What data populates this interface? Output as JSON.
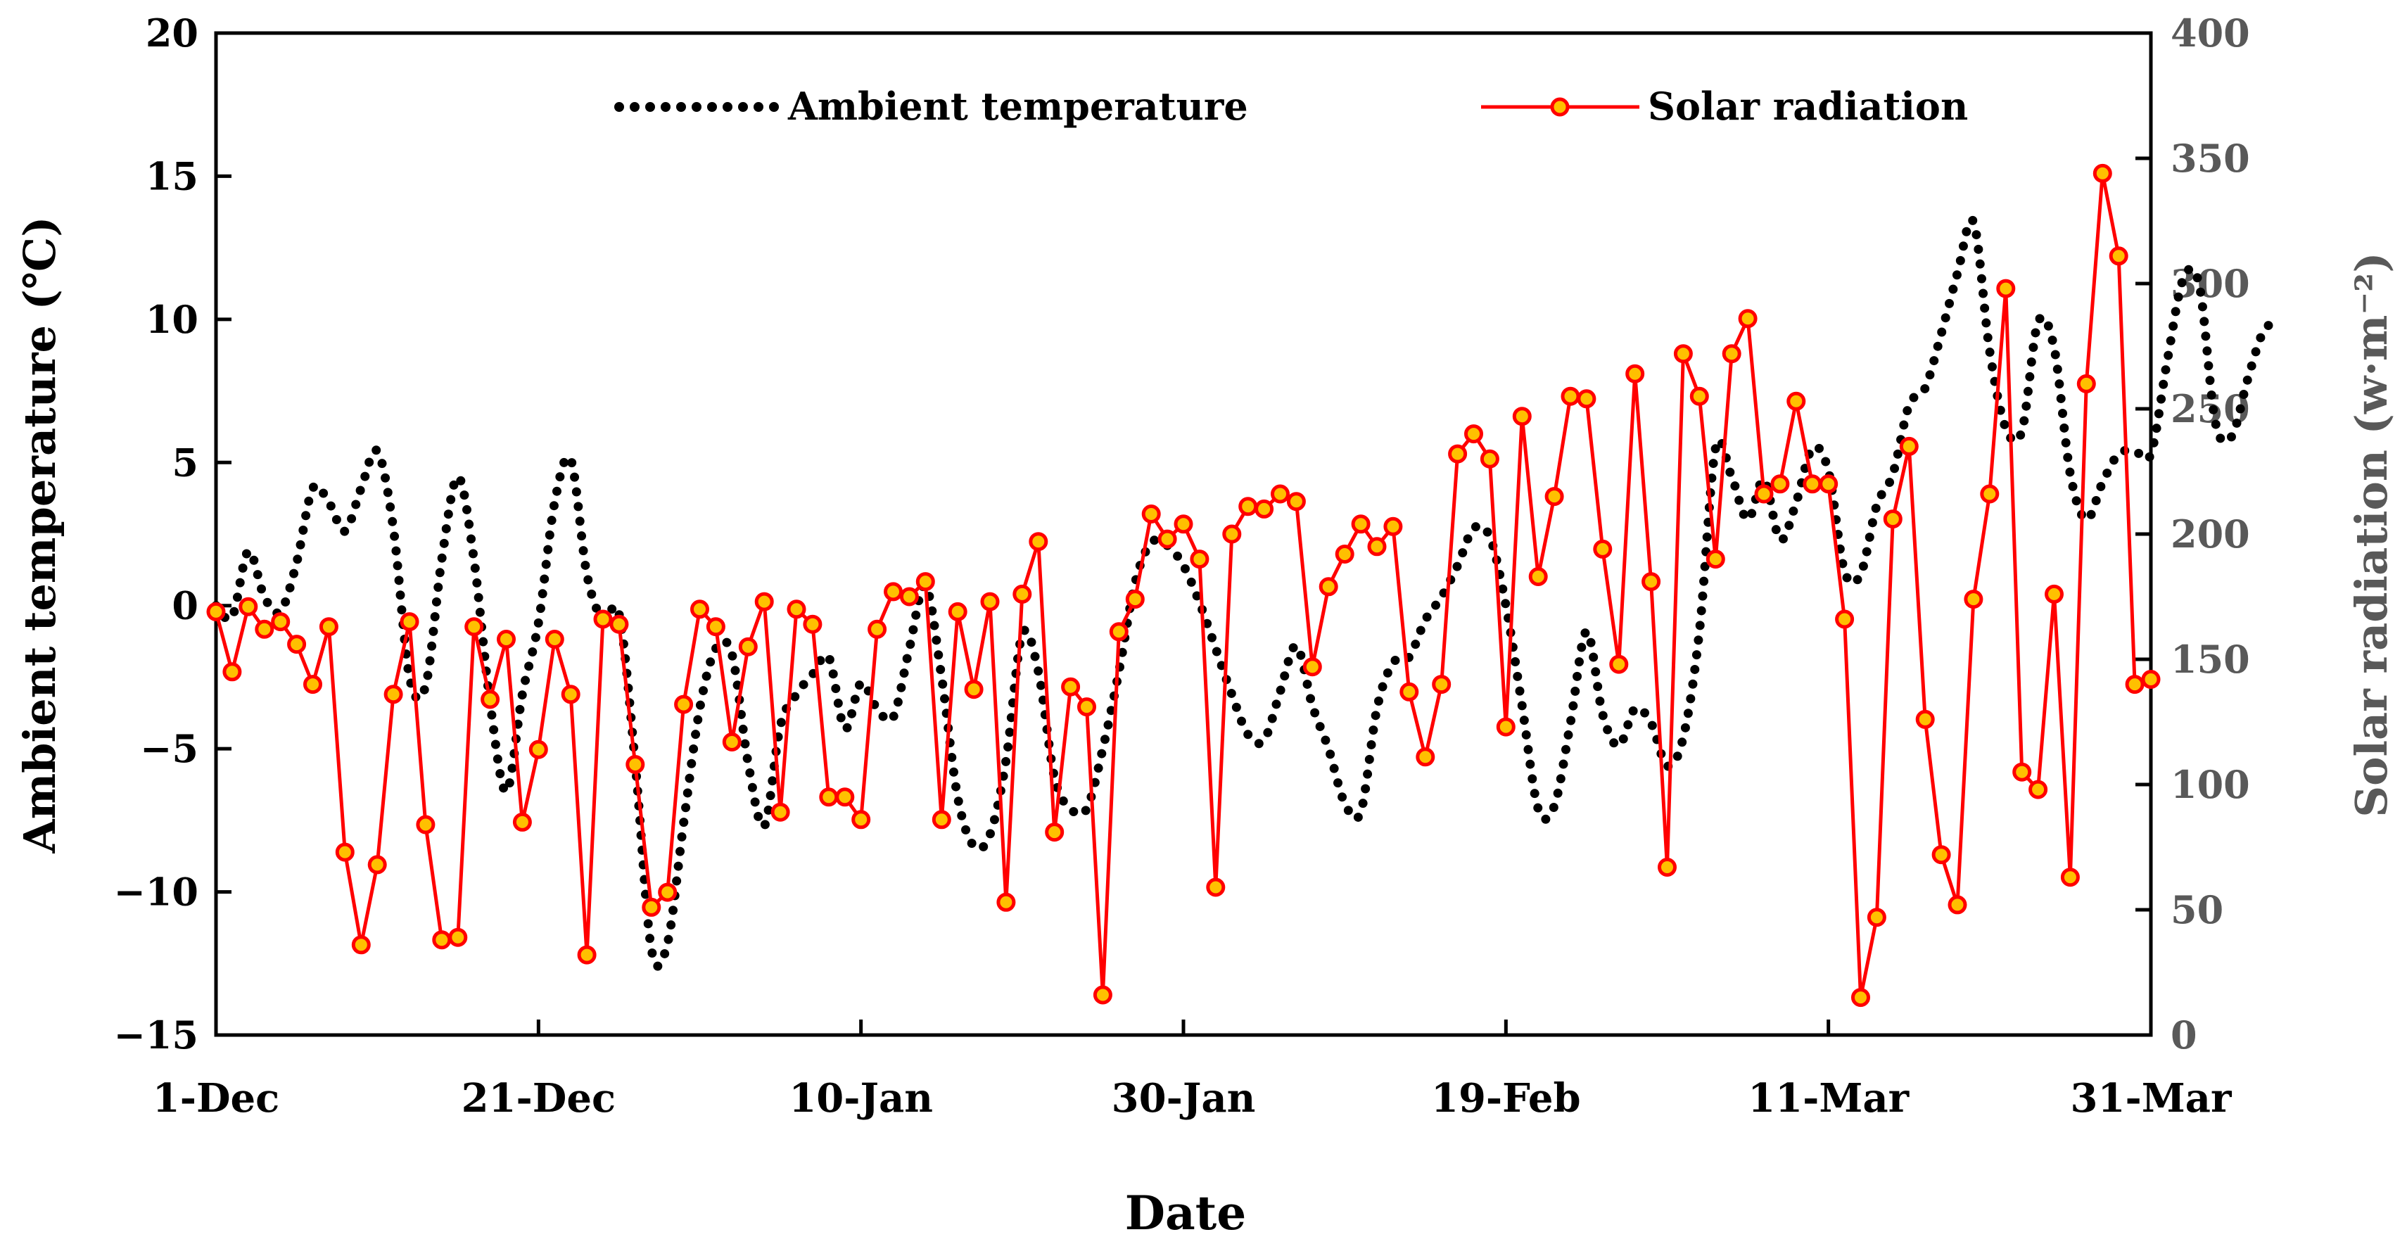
{
  "chart_data": {
    "type": "line",
    "title": "",
    "xlabel": "Date",
    "ylabel_left": "Ambient temperature (℃)",
    "ylabel_right": "Solar radiation (w·m⁻²)",
    "ylim_left": [
      -15,
      20
    ],
    "ylim_right": [
      0,
      400
    ],
    "yticks_left": [
      -15,
      -10,
      -5,
      0,
      5,
      10,
      15,
      20
    ],
    "yticks_left_labels": [
      "−15",
      "−10",
      "−5",
      "0",
      "5",
      "10",
      "15",
      "20"
    ],
    "yticks_right": [
      0,
      50,
      100,
      150,
      200,
      250,
      300,
      350,
      400
    ],
    "yticks_right_labels": [
      "0",
      "50",
      "100",
      "150",
      "200",
      "250",
      "300",
      "350",
      "400"
    ],
    "xlim": [
      0,
      120
    ],
    "xticks": [
      0,
      20,
      40,
      60,
      80,
      100,
      120
    ],
    "xtick_labels": [
      "1-Dec",
      "21-Dec",
      "10-Jan",
      "30-Jan",
      "19-Feb",
      "11-Mar",
      "31-Mar"
    ],
    "grid": false,
    "legend_position": "top",
    "series": [
      {
        "name": "Ambient temperature",
        "axis": "left",
        "style": "dotted",
        "color": "#000000",
        "points": [
          [
            0,
            0
          ],
          [
            1,
            -0.4
          ],
          [
            2,
            1.9
          ],
          [
            3,
            0.3
          ],
          [
            4,
            -0.2
          ],
          [
            5,
            1.5
          ],
          [
            6,
            4.1
          ],
          [
            7,
            3.6
          ],
          [
            8,
            2.6
          ],
          [
            9,
            4.1
          ],
          [
            10,
            5.4
          ],
          [
            11,
            2.7
          ],
          [
            12,
            -2.5
          ],
          [
            13,
            -2.8
          ],
          [
            14,
            1.6
          ],
          [
            15,
            4.5
          ],
          [
            16,
            1.6
          ],
          [
            17,
            -3.4
          ],
          [
            18,
            -6.5
          ],
          [
            19,
            -3.1
          ],
          [
            20,
            -0.6
          ],
          [
            21,
            3.6
          ],
          [
            22,
            5.1
          ],
          [
            23,
            1.1
          ],
          [
            24,
            -0.5
          ],
          [
            25,
            -0.3
          ],
          [
            26,
            -5.5
          ],
          [
            27,
            -12.0
          ],
          [
            28,
            -11.8
          ],
          [
            29,
            -7.6
          ],
          [
            30,
            -3.6
          ],
          [
            31,
            -1.5
          ],
          [
            32,
            -1.7
          ],
          [
            33,
            -5.5
          ],
          [
            34,
            -7.7
          ],
          [
            35,
            -4.2
          ],
          [
            36,
            -3.1
          ],
          [
            37,
            -2.4
          ],
          [
            38,
            -1.8
          ],
          [
            39,
            -4.3
          ],
          [
            40,
            -2.7
          ],
          [
            41,
            -3.6
          ],
          [
            42,
            -3.9
          ],
          [
            43,
            -1.5
          ],
          [
            44,
            0.7
          ],
          [
            45,
            -2.5
          ],
          [
            46,
            -6.7
          ],
          [
            47,
            -8.4
          ],
          [
            48,
            -8.0
          ],
          [
            49,
            -5.4
          ],
          [
            50,
            -1.0
          ],
          [
            51,
            -2.3
          ],
          [
            52,
            -6.0
          ],
          [
            53,
            -7.1
          ],
          [
            54,
            -7.1
          ],
          [
            55,
            -5.0
          ],
          [
            56,
            -2.3
          ],
          [
            57,
            0.8
          ],
          [
            58,
            2.2
          ],
          [
            59,
            2.1
          ],
          [
            60,
            1.4
          ],
          [
            61,
            0.1
          ],
          [
            62,
            -1.5
          ],
          [
            63,
            -3.1
          ],
          [
            64,
            -4.5
          ],
          [
            65,
            -4.7
          ],
          [
            66,
            -3.0
          ],
          [
            67,
            -1.4
          ],
          [
            68,
            -3.5
          ],
          [
            69,
            -5.0
          ],
          [
            70,
            -6.9
          ],
          [
            71,
            -7.2
          ],
          [
            72,
            -3.6
          ],
          [
            73,
            -2.0
          ],
          [
            74,
            -1.8
          ],
          [
            75,
            -0.5
          ],
          [
            76,
            0.3
          ],
          [
            77,
            1.4
          ],
          [
            78,
            2.7
          ],
          [
            79,
            2.4
          ],
          [
            80,
            0.0
          ],
          [
            81,
            -3.5
          ],
          [
            82,
            -7.1
          ],
          [
            83,
            -7.0
          ],
          [
            84,
            -4.1
          ],
          [
            85,
            -0.9
          ],
          [
            86,
            -3.8
          ],
          [
            87,
            -4.9
          ],
          [
            88,
            -3.6
          ],
          [
            89,
            -4.1
          ],
          [
            90,
            -5.6
          ],
          [
            91,
            -4.6
          ],
          [
            92,
            -0.9
          ],
          [
            93,
            5.5
          ],
          [
            94,
            4.5
          ],
          [
            95,
            3.0
          ],
          [
            96,
            4.4
          ],
          [
            97,
            2.3
          ],
          [
            98,
            3.6
          ],
          [
            99,
            5.5
          ],
          [
            100,
            4.7
          ],
          [
            101,
            1.2
          ],
          [
            102,
            1.1
          ],
          [
            103,
            3.5
          ],
          [
            104,
            4.6
          ],
          [
            105,
            7.0
          ],
          [
            106,
            7.6
          ],
          [
            107,
            9.5
          ],
          [
            108,
            11.6
          ],
          [
            109,
            13.4
          ],
          [
            110,
            8.9
          ],
          [
            111,
            6.2
          ],
          [
            112,
            6.1
          ],
          [
            113,
            9.9
          ],
          [
            114,
            9.0
          ],
          [
            115,
            4.6
          ],
          [
            116,
            3.0
          ],
          [
            117,
            4.3
          ],
          [
            118,
            5.3
          ],
          [
            119,
            5.4
          ],
          [
            120,
            5.3
          ],
          [
            121,
            8.5
          ],
          [
            122,
            11.4
          ],
          [
            123,
            11.2
          ],
          [
            124,
            6.4
          ],
          [
            125,
            5.9
          ],
          [
            126,
            7.9
          ],
          [
            127,
            9.6
          ],
          [
            128,
            9.9
          ]
        ]
      },
      {
        "name": "Solar radiation",
        "axis": "right",
        "style": "line-markers",
        "color": "#ff0000",
        "marker_fill": "#ffc000",
        "points": [
          [
            0,
            169
          ],
          [
            1,
            145
          ],
          [
            2,
            171
          ],
          [
            3,
            162
          ],
          [
            4,
            165
          ],
          [
            5,
            156
          ],
          [
            6,
            140
          ],
          [
            7,
            163
          ],
          [
            8,
            73
          ],
          [
            9,
            36
          ],
          [
            10,
            68
          ],
          [
            11,
            136
          ],
          [
            12,
            165
          ],
          [
            13,
            84
          ],
          [
            14,
            38
          ],
          [
            15,
            39
          ],
          [
            16,
            163
          ],
          [
            17,
            134
          ],
          [
            18,
            158
          ],
          [
            19,
            85
          ],
          [
            20,
            114
          ],
          [
            21,
            158
          ],
          [
            22,
            136
          ],
          [
            23,
            32
          ],
          [
            24,
            166
          ],
          [
            25,
            164
          ],
          [
            26,
            108
          ],
          [
            27,
            51
          ],
          [
            28,
            57
          ],
          [
            29,
            132
          ],
          [
            30,
            170
          ],
          [
            31,
            163
          ],
          [
            32,
            117
          ],
          [
            33,
            155
          ],
          [
            34,
            173
          ],
          [
            35,
            89
          ],
          [
            36,
            170
          ],
          [
            37,
            164
          ],
          [
            38,
            95
          ],
          [
            39,
            95
          ],
          [
            40,
            86
          ],
          [
            41,
            162
          ],
          [
            42,
            177
          ],
          [
            43,
            175
          ],
          [
            44,
            181
          ],
          [
            45,
            86
          ],
          [
            46,
            169
          ],
          [
            47,
            138
          ],
          [
            48,
            173
          ],
          [
            49,
            53
          ],
          [
            50,
            176
          ],
          [
            51,
            197
          ],
          [
            52,
            81
          ],
          [
            53,
            139
          ],
          [
            54,
            131
          ],
          [
            55,
            16
          ],
          [
            56,
            161
          ],
          [
            57,
            174
          ],
          [
            58,
            208
          ],
          [
            59,
            198
          ],
          [
            60,
            204
          ],
          [
            61,
            190
          ],
          [
            62,
            59
          ],
          [
            63,
            200
          ],
          [
            64,
            211
          ],
          [
            65,
            210
          ],
          [
            66,
            216
          ],
          [
            67,
            213
          ],
          [
            68,
            147
          ],
          [
            69,
            179
          ],
          [
            70,
            192
          ],
          [
            71,
            204
          ],
          [
            72,
            195
          ],
          [
            73,
            203
          ],
          [
            74,
            137
          ],
          [
            75,
            111
          ],
          [
            76,
            140
          ],
          [
            77,
            232
          ],
          [
            78,
            240
          ],
          [
            79,
            230
          ],
          [
            80,
            123
          ],
          [
            81,
            247
          ],
          [
            82,
            183
          ],
          [
            83,
            215
          ],
          [
            84,
            255
          ],
          [
            85,
            254
          ],
          [
            86,
            194
          ],
          [
            87,
            148
          ],
          [
            88,
            264
          ],
          [
            89,
            181
          ],
          [
            90,
            67
          ],
          [
            91,
            272
          ],
          [
            92,
            255
          ],
          [
            93,
            190
          ],
          [
            94,
            272
          ],
          [
            95,
            286
          ],
          [
            96,
            216
          ],
          [
            97,
            220
          ],
          [
            98,
            253
          ],
          [
            99,
            220
          ],
          [
            100,
            220
          ],
          [
            101,
            166
          ],
          [
            102,
            15
          ],
          [
            103,
            47
          ],
          [
            104,
            206
          ],
          [
            105,
            235
          ],
          [
            106,
            126
          ],
          [
            107,
            72
          ],
          [
            108,
            52
          ],
          [
            109,
            174
          ],
          [
            110,
            216
          ],
          [
            111,
            298
          ],
          [
            112,
            105
          ],
          [
            113,
            98
          ],
          [
            114,
            176
          ],
          [
            115,
            63
          ],
          [
            116,
            260
          ],
          [
            117,
            344
          ],
          [
            118,
            311
          ],
          [
            119,
            140
          ],
          [
            120,
            142
          ]
        ]
      }
    ]
  }
}
